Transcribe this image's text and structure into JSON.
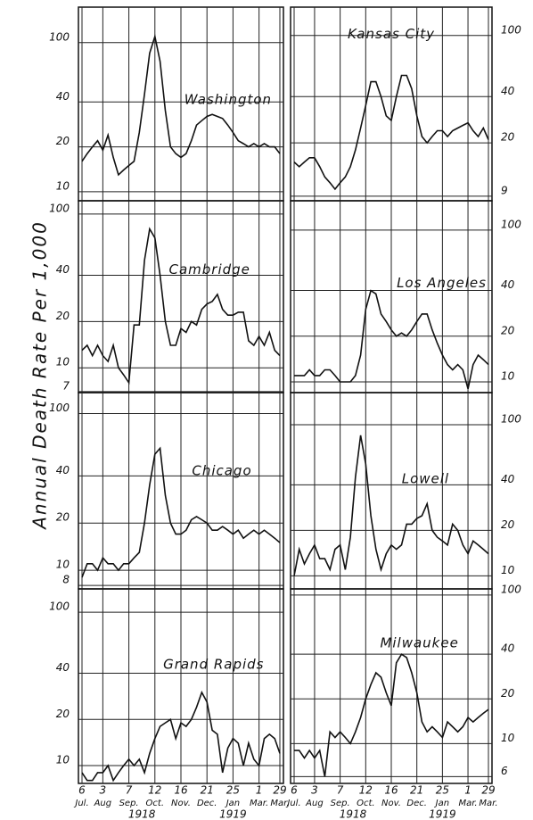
{
  "y_axis_label": "Annual Death Rate Per 1,000",
  "x_axis": {
    "xlim": [
      0,
      38
    ],
    "xticks": [
      {
        "value": 0,
        "label": "6"
      },
      {
        "value": 4,
        "label": "3"
      },
      {
        "value": 9,
        "label": "7"
      },
      {
        "value": 14,
        "label": "12"
      },
      {
        "value": 19,
        "label": "16"
      },
      {
        "value": 24,
        "label": "21"
      },
      {
        "value": 29,
        "label": "25"
      },
      {
        "value": 34,
        "label": "1"
      },
      {
        "value": 38,
        "label": "29"
      }
    ],
    "months": [
      "Jul.",
      "Aug",
      "Sep.",
      "Oct.",
      "Nov.",
      "Dec.",
      "Jan",
      "Mar.",
      "Mar."
    ],
    "years": [
      "1918",
      "1919"
    ]
  },
  "chart_data": [
    {
      "type": "line",
      "title": "Washington",
      "yscale": "log",
      "grid": true,
      "color": "#111",
      "ylim": [
        8.7,
        173
      ],
      "yticks": [
        10,
        20,
        40,
        100
      ],
      "x": [
        0,
        1,
        2,
        3,
        4,
        5,
        6,
        7,
        8,
        9,
        10,
        11,
        12,
        13,
        14,
        15,
        16,
        17,
        18,
        19,
        20,
        21,
        22,
        23,
        24,
        25,
        26,
        27,
        28,
        29,
        30,
        31,
        32,
        33,
        34,
        35,
        36,
        37,
        38
      ],
      "values": [
        16,
        18,
        20,
        22,
        19,
        24,
        17,
        13,
        14,
        15,
        16,
        25,
        45,
        85,
        110,
        75,
        35,
        20,
        18,
        17,
        18,
        22,
        28,
        30,
        32,
        33,
        32,
        31,
        28,
        25,
        22,
        21,
        20,
        21,
        20,
        21,
        20,
        20,
        18
      ]
    },
    {
      "type": "line",
      "title": "Kansas City",
      "yscale": "log",
      "grid": true,
      "color": "#111",
      "ylim": [
        8.4,
        153
      ],
      "yticks": [
        9,
        20,
        40,
        100
      ],
      "x": [
        0,
        1,
        2,
        3,
        4,
        5,
        6,
        7,
        8,
        9,
        10,
        11,
        12,
        13,
        14,
        15,
        16,
        17,
        18,
        19,
        20,
        21,
        22,
        23,
        24,
        25,
        26,
        27,
        28,
        29,
        30,
        31,
        32,
        33,
        34,
        35,
        36,
        37,
        38
      ],
      "values": [
        15,
        14,
        15,
        16,
        16,
        14,
        12,
        11,
        10,
        11,
        12,
        14,
        18,
        25,
        35,
        50,
        50,
        40,
        30,
        28,
        40,
        55,
        55,
        45,
        30,
        22,
        20,
        22,
        24,
        24,
        22,
        24,
        25,
        26,
        27,
        24,
        22,
        25,
        21
      ]
    },
    {
      "type": "line",
      "title": "Cambridge",
      "yscale": "log",
      "grid": true,
      "color": "#111",
      "ylim": [
        6.9,
        122
      ],
      "yticks": [
        7,
        10,
        20,
        40,
        100
      ],
      "x": [
        0,
        1,
        2,
        3,
        4,
        5,
        6,
        7,
        8,
        9,
        10,
        11,
        12,
        13,
        14,
        15,
        16,
        17,
        18,
        19,
        20,
        21,
        22,
        23,
        24,
        25,
        26,
        27,
        28,
        29,
        30,
        31,
        32,
        33,
        34,
        35,
        36,
        37,
        38
      ],
      "values": [
        13,
        14,
        12,
        14,
        12,
        11,
        14,
        10,
        9,
        8,
        19,
        19,
        50,
        80,
        70,
        40,
        20,
        14,
        14,
        18,
        17,
        20,
        19,
        24,
        26,
        27,
        30,
        24,
        22,
        22,
        23,
        23,
        15,
        14,
        16,
        14,
        17,
        13,
        12
      ]
    },
    {
      "type": "line",
      "title": "Los Angeles",
      "yscale": "log",
      "grid": true,
      "color": "#111",
      "ylim": [
        8.5,
        156
      ],
      "yticks": [
        10,
        20,
        40,
        100
      ],
      "x": [
        0,
        1,
        2,
        3,
        4,
        5,
        6,
        7,
        8,
        9,
        10,
        11,
        12,
        13,
        14,
        15,
        16,
        17,
        18,
        19,
        20,
        21,
        22,
        23,
        24,
        25,
        26,
        27,
        28,
        29,
        30,
        31,
        32,
        33,
        34,
        35,
        36,
        37,
        38
      ],
      "values": [
        11,
        11,
        11,
        12,
        11,
        11,
        12,
        12,
        11,
        10,
        10,
        10,
        11,
        15,
        30,
        40,
        38,
        28,
        25,
        22,
        20,
        21,
        20,
        22,
        25,
        28,
        28,
        22,
        18,
        15,
        13,
        12,
        13,
        12,
        9,
        13,
        15,
        14,
        13
      ]
    },
    {
      "type": "line",
      "title": "Chicago",
      "yscale": "log",
      "grid": true,
      "color": "#111",
      "ylim": [
        7.6,
        136
      ],
      "yticks": [
        8,
        10,
        20,
        40,
        100
      ],
      "x": [
        0,
        1,
        2,
        3,
        4,
        5,
        6,
        7,
        8,
        9,
        10,
        11,
        12,
        13,
        14,
        15,
        16,
        17,
        18,
        19,
        20,
        21,
        22,
        23,
        24,
        25,
        26,
        27,
        28,
        29,
        30,
        31,
        32,
        33,
        34,
        35,
        36,
        37,
        38
      ],
      "values": [
        9,
        11,
        11,
        10,
        12,
        11,
        11,
        10,
        11,
        11,
        12,
        13,
        20,
        35,
        55,
        60,
        30,
        20,
        17,
        17,
        18,
        21,
        22,
        21,
        20,
        18,
        18,
        19,
        18,
        17,
        18,
        16,
        17,
        18,
        17,
        18,
        17,
        16,
        15
      ]
    },
    {
      "type": "line",
      "title": "Lowell",
      "yscale": "log",
      "grid": true,
      "color": "#111",
      "ylim": [
        8.2,
        163
      ],
      "yticks": [
        10,
        20,
        40,
        100
      ],
      "x": [
        0,
        1,
        2,
        3,
        4,
        5,
        6,
        7,
        8,
        9,
        10,
        11,
        12,
        13,
        14,
        15,
        16,
        17,
        18,
        19,
        20,
        21,
        22,
        23,
        24,
        25,
        26,
        27,
        28,
        29,
        30,
        31,
        32,
        33,
        34,
        35,
        36,
        37,
        38
      ],
      "values": [
        10,
        15,
        12,
        14,
        16,
        13,
        13,
        11,
        15,
        16,
        11,
        18,
        45,
        85,
        55,
        25,
        15,
        11,
        14,
        16,
        15,
        16,
        22,
        22,
        24,
        25,
        30,
        20,
        18,
        17,
        16,
        22,
        20,
        16,
        14,
        17,
        16,
        15,
        14
      ]
    },
    {
      "type": "line",
      "title": "Grand Rapids",
      "yscale": "log",
      "grid": true,
      "color": "#111",
      "ylim": [
        7.65,
        142
      ],
      "yticks": [
        10,
        20,
        40,
        100
      ],
      "x": [
        0,
        1,
        2,
        3,
        4,
        5,
        6,
        7,
        8,
        9,
        10,
        11,
        12,
        13,
        14,
        15,
        16,
        17,
        18,
        19,
        20,
        21,
        22,
        23,
        24,
        25,
        26,
        27,
        28,
        29,
        30,
        31,
        32,
        33,
        34,
        35,
        36,
        37,
        38
      ],
      "values": [
        9,
        8,
        8,
        9,
        9,
        10,
        8,
        9,
        10,
        11,
        10,
        11,
        9,
        12,
        15,
        18,
        19,
        20,
        15,
        19,
        18,
        20,
        24,
        30,
        26,
        17,
        16,
        9,
        13,
        15,
        14,
        10,
        14,
        11,
        10,
        15,
        16,
        15,
        12
      ]
    },
    {
      "type": "line",
      "title": "Milwaukee",
      "yscale": "log",
      "grid": true,
      "color": "#111",
      "ylim": [
        5.4,
        110
      ],
      "yticks": [
        6,
        10,
        20,
        40,
        100
      ],
      "x": [
        0,
        1,
        2,
        3,
        4,
        5,
        6,
        7,
        8,
        9,
        10,
        11,
        12,
        13,
        14,
        15,
        16,
        17,
        18,
        19,
        20,
        21,
        22,
        23,
        24,
        25,
        26,
        27,
        28,
        29,
        30,
        31,
        32,
        33,
        34,
        35,
        36,
        37,
        38
      ],
      "values": [
        9,
        9,
        8,
        9,
        8,
        9,
        6,
        12,
        11,
        12,
        11,
        10,
        12,
        15,
        20,
        25,
        30,
        28,
        22,
        18,
        35,
        40,
        38,
        30,
        22,
        14,
        12,
        13,
        12,
        11,
        14,
        13,
        12,
        13,
        15,
        14,
        15,
        16,
        17
      ]
    }
  ]
}
